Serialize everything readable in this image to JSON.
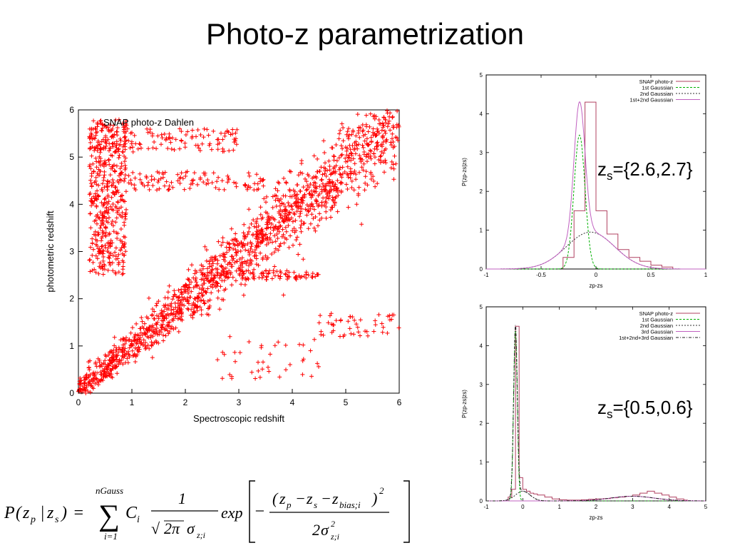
{
  "slide": {
    "title": "Photo-z parametrization"
  },
  "chart_data": [
    {
      "type": "scatter",
      "title": "SNAP photo-z Dahlen",
      "xlabel": "Spectroscopic redshift",
      "ylabel": "photometric redshift",
      "xlim": [
        0,
        6
      ],
      "ylim": [
        0,
        6
      ],
      "xticks": [
        "0",
        "1",
        "2",
        "3",
        "4",
        "5",
        "6"
      ],
      "yticks": [
        "0",
        "1",
        "2",
        "3",
        "4",
        "5",
        "6"
      ],
      "marker": "+",
      "color": "#ff0000",
      "grid": false,
      "regions": [
        {
          "name": "diagonal",
          "x_range": [
            0,
            6
          ],
          "y_of_x": "0.95*x+0.05",
          "spread": 0.35,
          "count": 1500
        },
        {
          "name": "outliers-high",
          "x_range": [
            0.2,
            0.9
          ],
          "y_range": [
            2.5,
            5.8
          ],
          "count": 450
        },
        {
          "name": "band-5.3",
          "x_range": [
            0.2,
            3.0
          ],
          "y_range": [
            5.1,
            5.6
          ],
          "count": 130
        },
        {
          "name": "band-4.5",
          "x_range": [
            0.8,
            3.5
          ],
          "y_range": [
            4.3,
            4.7
          ],
          "count": 110
        },
        {
          "name": "band-2.5",
          "x_range": [
            3.0,
            4.5
          ],
          "y_range": [
            2.4,
            2.6
          ],
          "count": 70
        },
        {
          "name": "outliers-low",
          "x_range": [
            4.5,
            6.0
          ],
          "y_range": [
            1.2,
            1.7
          ],
          "count": 50
        },
        {
          "name": "outliers-mid",
          "x_range": [
            2.5,
            4.5
          ],
          "y_range": [
            0.3,
            1.2
          ],
          "count": 40
        }
      ]
    },
    {
      "type": "line",
      "xlabel": "zp-zs",
      "ylabel": "P(zp-zs|zs)",
      "xlim": [
        -1,
        1
      ],
      "ylim": [
        0,
        5
      ],
      "xticks": [
        "-1",
        "-0.5",
        "0",
        "0.5",
        "1"
      ],
      "yticks": [
        "0",
        "1",
        "2",
        "3",
        "4",
        "5"
      ],
      "legend_position": "top-right",
      "series": [
        {
          "name": "SNAP photo-z",
          "style": "step",
          "color": "#b04060",
          "x": [
            -0.3,
            -0.2,
            -0.1,
            0.0,
            0.1,
            0.2,
            0.3,
            0.4,
            0.5,
            0.6
          ],
          "values": [
            0.3,
            1.5,
            4.3,
            1.5,
            0.9,
            0.5,
            0.3,
            0.2,
            0.1,
            0.05
          ]
        },
        {
          "name": "1st Gaussian",
          "style": "gaussian",
          "color": "#00b000",
          "dash": "3,2",
          "amp": 3.45,
          "mu": -0.15,
          "sigma": 0.05
        },
        {
          "name": "2nd Gaussian",
          "style": "gaussian",
          "color": "#303030",
          "dash": "2,2",
          "amp": 0.95,
          "mu": -0.05,
          "sigma": 0.22
        },
        {
          "name": "1st+2nd Gaussian",
          "style": "sum",
          "color": "#c060c0",
          "components": [
            1,
            2
          ]
        }
      ]
    },
    {
      "type": "line",
      "xlabel": "zp-zs",
      "ylabel": "P(zp-zs|zs)",
      "xlim": [
        -1,
        5
      ],
      "ylim": [
        0,
        5
      ],
      "xticks": [
        "-1",
        "0",
        "1",
        "2",
        "3",
        "4",
        "5"
      ],
      "yticks": [
        "0",
        "1",
        "2",
        "3",
        "4",
        "5"
      ],
      "legend_position": "top-right",
      "series": [
        {
          "name": "SNAP photo-z",
          "style": "step",
          "color": "#b04060",
          "x": [
            -0.4,
            -0.3,
            -0.2,
            -0.1,
            0.0,
            0.1,
            0.2,
            0.3,
            0.4,
            0.6,
            0.8,
            1.0,
            1.2,
            1.4,
            1.6,
            1.8,
            2.0,
            2.2,
            2.4,
            2.6,
            2.8,
            3.0,
            3.2,
            3.4,
            3.6,
            3.8,
            4.0,
            4.2,
            4.4
          ],
          "values": [
            0.1,
            0.3,
            4.5,
            0.6,
            0.3,
            0.25,
            0.2,
            0.18,
            0.15,
            0.1,
            0.05,
            0.03,
            0.02,
            0.02,
            0.03,
            0.04,
            0.05,
            0.06,
            0.08,
            0.1,
            0.12,
            0.15,
            0.2,
            0.25,
            0.2,
            0.15,
            0.1,
            0.05,
            0.02
          ]
        },
        {
          "name": "1st Gaussian",
          "style": "gaussian",
          "color": "#00b000",
          "dash": "3,2",
          "amp": 4.4,
          "mu": -0.2,
          "sigma": 0.05
        },
        {
          "name": "2nd Gaussian",
          "style": "gaussian",
          "color": "#303030",
          "dash": "2,2",
          "amp": 0.25,
          "mu": 0.0,
          "sigma": 0.2
        },
        {
          "name": "3rd Gaussian",
          "style": "gaussian",
          "color": "#c060c0",
          "amp": 0.12,
          "mu": 3.0,
          "sigma": 0.6
        },
        {
          "name": "1st+2nd+3rd Gaussian",
          "style": "sum",
          "color": "#202020",
          "dash": "4,2,1,2",
          "components": [
            1,
            2,
            3
          ]
        }
      ]
    }
  ],
  "annotations": {
    "z1": {
      "prefix": "z",
      "sub": "s",
      "value": "={2.6,2.7}"
    },
    "z2": {
      "prefix": "z",
      "sub": "s",
      "value": "={0.5,0.6}"
    }
  },
  "formula": {
    "lhs_p": "P",
    "lhs_open": "(",
    "lhs_z1": "z",
    "lhs_z1_sub": "p",
    "lhs_bar": "|",
    "lhs_z2": "z",
    "lhs_z2_sub": "s",
    "lhs_close": ")",
    "equals": "=",
    "sum": "∑",
    "sum_upper": "nGauss",
    "sum_lower": "i=1",
    "coef": "C",
    "coef_sub": "i",
    "frac1_num": "1",
    "sqrt": "√",
    "two_pi": "2π",
    "sigma": "σ",
    "sigma_sub": "z;i",
    "exp": "exp",
    "minus": "−",
    "num_open": "(",
    "zp": "z",
    "zp_sub": "p",
    "minus2": "−",
    "zs": "z",
    "zs_sub": "s",
    "minus3": "−",
    "zbias": "z",
    "zbias_sub": "bias;i",
    "num_close": ")",
    "num_exp": "2",
    "den_two": "2",
    "den_sigma": "σ",
    "den_sigma_sup": "2",
    "den_sigma_sub": "z;i"
  }
}
